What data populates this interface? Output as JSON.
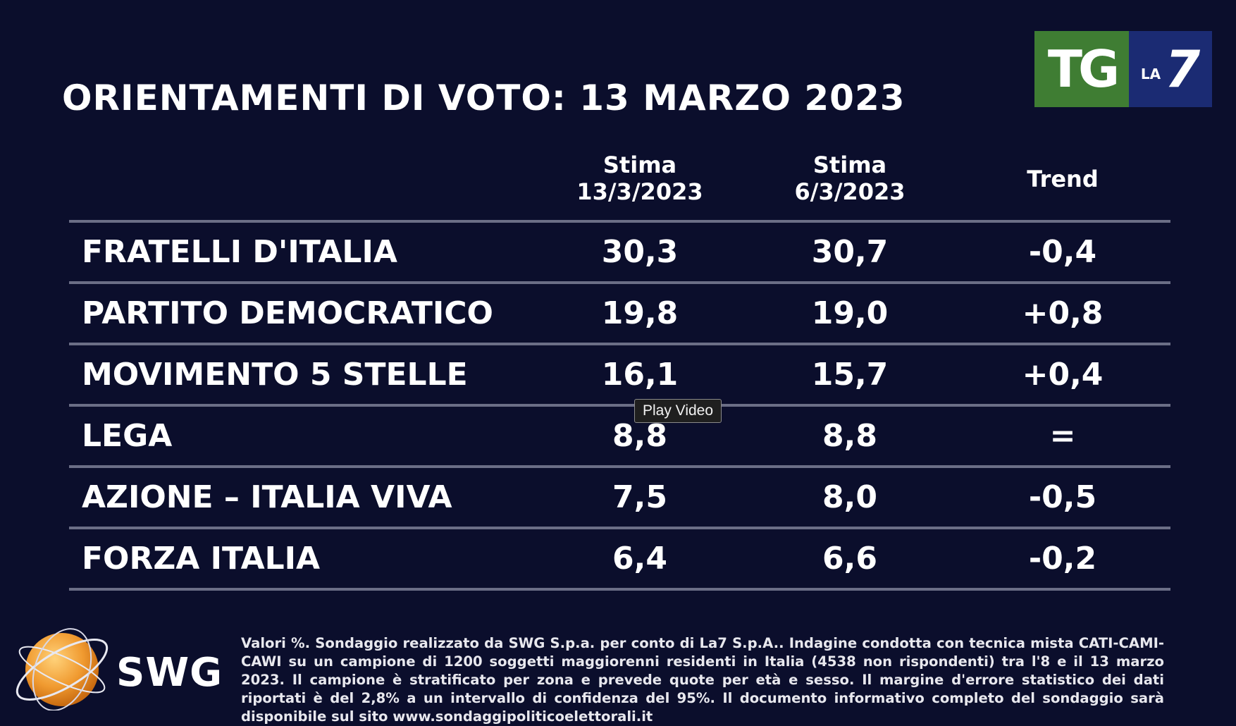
{
  "logo": {
    "tg": "TG",
    "la": "LA",
    "seven": "7"
  },
  "title": "ORIENTAMENTI DI VOTO: 13 MARZO 2023",
  "columns": {
    "c1_line1": "Stima",
    "c1_line2": "13/3/2023",
    "c2_line1": "Stima",
    "c2_line2": "6/3/2023",
    "c3": "Trend"
  },
  "rows": [
    {
      "party": "FRATELLI D'ITALIA",
      "v1": "30,3",
      "v2": "30,7",
      "trend": "-0,4"
    },
    {
      "party": "PARTITO DEMOCRATICO",
      "v1": "19,8",
      "v2": "19,0",
      "trend": "+0,8"
    },
    {
      "party": "MOVIMENTO 5 STELLE",
      "v1": "16,1",
      "v2": "15,7",
      "trend": "+0,4"
    },
    {
      "party": "LEGA",
      "v1": "8,8",
      "v2": "8,8",
      "trend": "="
    },
    {
      "party": "AZIONE – ITALIA VIVA",
      "v1": "7,5",
      "v2": "8,0",
      "trend": "-0,5"
    },
    {
      "party": "FORZA ITALIA",
      "v1": "6,4",
      "v2": "6,6",
      "trend": "-0,2"
    }
  ],
  "tooltip": "Play Video",
  "swg": {
    "wordmark": "SWG"
  },
  "footnote": "Valori %. Sondaggio realizzato da SWG S.p.a. per conto di La7 S.p.A.. Indagine condotta con tecnica mista CATI-CAMI-CAWI su un campione di 1200 soggetti maggiorenni residenti in Italia (4538 non rispondenti) tra l'8 e il 13 marzo 2023. Il campione è stratificato per zona e prevede quote per età e sesso. Il margine d'errore statistico dei dati riportati è del 2,8% a un intervallo di confidenza del 95%. Il documento informativo completo del sondaggio sarà disponibile sul sito www.sondaggipoliticoelettorali.it",
  "colors": {
    "background": "#0b0e2c",
    "tg_green": "#3f7d33",
    "la7_blue": "#1b2b73",
    "swg_orange": "#f0a040"
  }
}
